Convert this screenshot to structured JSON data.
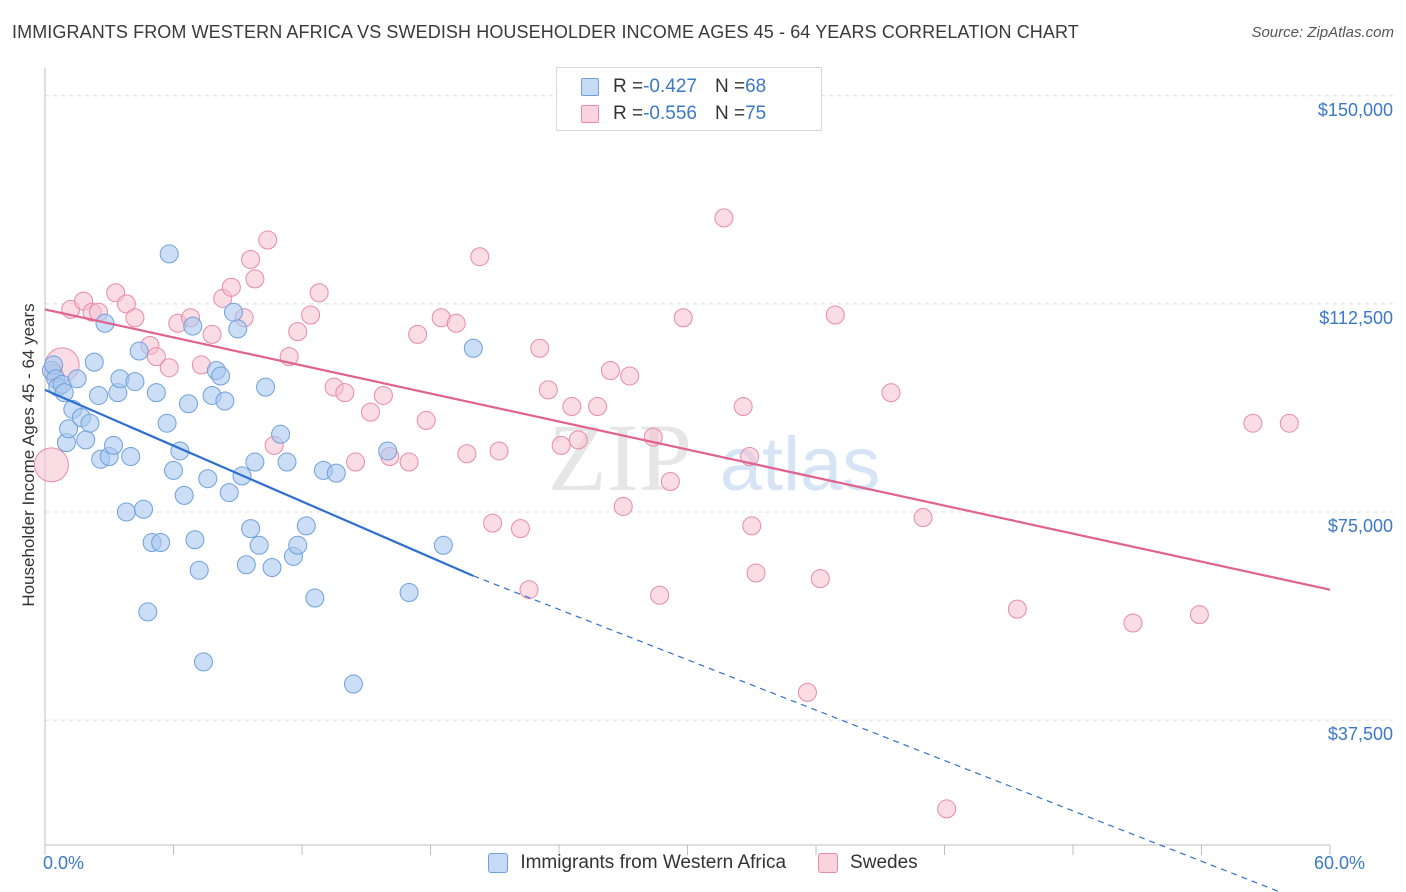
{
  "title": "IMMIGRANTS FROM WESTERN AFRICA VS SWEDISH HOUSEHOLDER INCOME AGES 45 - 64 YEARS CORRELATION CHART",
  "source": "Source: ZipAtlas.com",
  "watermark": {
    "zip": "ZIP",
    "atlas": "atlas"
  },
  "legend": {
    "rows": [
      {
        "r_label": "R = ",
        "r_value": "-0.427",
        "n_label": "N = ",
        "n_value": "68"
      },
      {
        "r_label": "R = ",
        "r_value": "-0.556",
        "n_label": "N = ",
        "n_value": "75"
      }
    ]
  },
  "colors": {
    "blue": "#a9c8ee",
    "blue_stroke": "#6fa0dc",
    "blue_line": "#2f6fcf",
    "pink": "#f5bfd0",
    "pink_stroke": "#e98aa8",
    "pink_line": "#e0628e",
    "tick_text": "#3b78c8"
  },
  "chart_data": {
    "type": "scatter",
    "title": "IMMIGRANTS FROM WESTERN AFRICA VS SWEDISH HOUSEHOLDER INCOME AGES 45 - 64 YEARS CORRELATION CHART",
    "xlabel": "",
    "ylabel": "Householder Income Ages 45 - 64 years",
    "xlim": [
      0,
      60
    ],
    "ylim": [
      15000,
      155000
    ],
    "x_tick_labels": [
      {
        "value": 0,
        "label": "0.0%"
      },
      {
        "value": 60,
        "label": "60.0%"
      }
    ],
    "y_ticks": [
      {
        "value": 37500,
        "label": "$37,500"
      },
      {
        "value": 75000,
        "label": "$75,000"
      },
      {
        "value": 112500,
        "label": "$112,500"
      },
      {
        "value": 150000,
        "label": "$150,000"
      }
    ],
    "grid": true,
    "legend_position": "top-center",
    "series": [
      {
        "name": "Immigrants from Western Africa",
        "color": "#a9c8ee",
        "trend": {
          "x": [
            0,
            20
          ],
          "y": [
            97000,
            63500
          ],
          "dashed_to": {
            "x": 60,
            "y": 3000
          }
        },
        "points": [
          [
            0.3,
            100500
          ],
          [
            0.4,
            101500
          ],
          [
            0.5,
            99000
          ],
          [
            0.6,
            97500
          ],
          [
            0.8,
            98000
          ],
          [
            0.9,
            96500
          ],
          [
            1.0,
            87500
          ],
          [
            1.1,
            90000
          ],
          [
            1.3,
            93500
          ],
          [
            1.5,
            99000
          ],
          [
            1.7,
            92000
          ],
          [
            1.9,
            88000
          ],
          [
            2.1,
            91000
          ],
          [
            2.3,
            102000
          ],
          [
            2.5,
            96000
          ],
          [
            2.6,
            84500
          ],
          [
            2.8,
            109000
          ],
          [
            3.0,
            85000
          ],
          [
            3.2,
            87000
          ],
          [
            3.4,
            96500
          ],
          [
            3.5,
            99000
          ],
          [
            3.8,
            75000
          ],
          [
            4.0,
            85000
          ],
          [
            4.2,
            98500
          ],
          [
            4.4,
            104000
          ],
          [
            4.6,
            75500
          ],
          [
            4.8,
            57000
          ],
          [
            5.0,
            69500
          ],
          [
            5.2,
            96500
          ],
          [
            5.4,
            69500
          ],
          [
            5.7,
            91000
          ],
          [
            5.8,
            121500
          ],
          [
            6.0,
            82500
          ],
          [
            6.3,
            86000
          ],
          [
            6.5,
            78000
          ],
          [
            6.7,
            94500
          ],
          [
            6.9,
            108500
          ],
          [
            7.0,
            70000
          ],
          [
            7.2,
            64500
          ],
          [
            7.4,
            48000
          ],
          [
            7.6,
            81000
          ],
          [
            7.8,
            96000
          ],
          [
            8.0,
            100500
          ],
          [
            8.2,
            99500
          ],
          [
            8.4,
            95000
          ],
          [
            8.6,
            78500
          ],
          [
            8.8,
            111000
          ],
          [
            9.0,
            108000
          ],
          [
            9.2,
            81500
          ],
          [
            9.4,
            65500
          ],
          [
            9.6,
            72000
          ],
          [
            9.8,
            84000
          ],
          [
            10.0,
            69000
          ],
          [
            10.3,
            97500
          ],
          [
            10.6,
            65000
          ],
          [
            11.0,
            89000
          ],
          [
            11.3,
            84000
          ],
          [
            11.6,
            67000
          ],
          [
            11.8,
            69000
          ],
          [
            12.2,
            72500
          ],
          [
            12.6,
            59500
          ],
          [
            13.0,
            82500
          ],
          [
            13.6,
            82000
          ],
          [
            14.4,
            44000
          ],
          [
            16.0,
            86000
          ],
          [
            17.0,
            60500
          ],
          [
            18.6,
            69000
          ],
          [
            20.0,
            104500
          ]
        ]
      },
      {
        "name": "Swedes",
        "color": "#f5bfd0",
        "trend": {
          "x": [
            0,
            60
          ],
          "y": [
            111500,
            61000
          ]
        },
        "points": [
          [
            0.3,
            83500
          ],
          [
            0.8,
            101500
          ],
          [
            1.2,
            111500
          ],
          [
            1.8,
            113000
          ],
          [
            2.2,
            111000
          ],
          [
            2.5,
            111000
          ],
          [
            3.3,
            114500
          ],
          [
            3.8,
            112500
          ],
          [
            4.2,
            110000
          ],
          [
            4.9,
            105000
          ],
          [
            5.2,
            103000
          ],
          [
            5.8,
            101000
          ],
          [
            6.2,
            109000
          ],
          [
            6.8,
            110000
          ],
          [
            7.3,
            101500
          ],
          [
            7.8,
            107000
          ],
          [
            8.3,
            113500
          ],
          [
            8.7,
            115500
          ],
          [
            9.3,
            110000
          ],
          [
            9.6,
            120500
          ],
          [
            9.8,
            117000
          ],
          [
            10.4,
            124000
          ],
          [
            10.7,
            87000
          ],
          [
            11.4,
            103000
          ],
          [
            11.8,
            107500
          ],
          [
            12.4,
            110500
          ],
          [
            12.8,
            114500
          ],
          [
            13.5,
            97500
          ],
          [
            14.0,
            96500
          ],
          [
            14.5,
            84000
          ],
          [
            15.2,
            93000
          ],
          [
            15.8,
            96000
          ],
          [
            16.1,
            85000
          ],
          [
            17.0,
            84000
          ],
          [
            17.4,
            107000
          ],
          [
            17.8,
            91500
          ],
          [
            18.5,
            110000
          ],
          [
            19.2,
            109000
          ],
          [
            19.7,
            85500
          ],
          [
            20.3,
            121000
          ],
          [
            20.9,
            73000
          ],
          [
            21.2,
            86000
          ],
          [
            22.2,
            72000
          ],
          [
            22.6,
            61000
          ],
          [
            23.1,
            104500
          ],
          [
            23.5,
            97000
          ],
          [
            24.1,
            87000
          ],
          [
            24.6,
            94000
          ],
          [
            24.9,
            88000
          ],
          [
            25.8,
            94000
          ],
          [
            26.4,
            100500
          ],
          [
            27.0,
            76000
          ],
          [
            27.3,
            99500
          ],
          [
            28.4,
            88500
          ],
          [
            28.7,
            60000
          ],
          [
            29.2,
            80500
          ],
          [
            29.8,
            110000
          ],
          [
            31.0,
            150000
          ],
          [
            31.7,
            128000
          ],
          [
            32.6,
            94000
          ],
          [
            32.9,
            85000
          ],
          [
            33.0,
            72500
          ],
          [
            33.2,
            64000
          ],
          [
            35.6,
            42500
          ],
          [
            36.2,
            63000
          ],
          [
            36.9,
            110500
          ],
          [
            39.5,
            96500
          ],
          [
            41.0,
            74000
          ],
          [
            42.1,
            21500
          ],
          [
            45.4,
            57500
          ],
          [
            50.8,
            55000
          ],
          [
            53.9,
            56500
          ],
          [
            56.4,
            91000
          ],
          [
            58.1,
            91000
          ],
          [
            0.4,
            100000
          ]
        ]
      }
    ]
  },
  "bottom_legend": [
    "Immigrants from Western Africa",
    "Swedes"
  ]
}
